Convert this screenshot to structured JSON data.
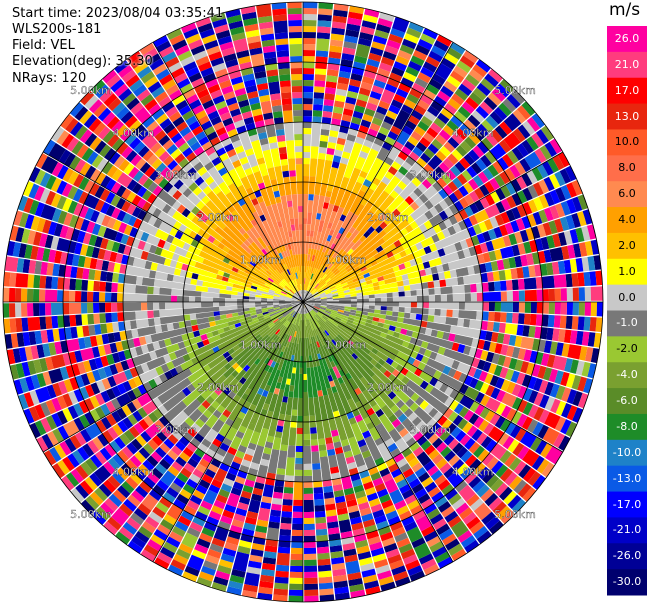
{
  "header": {
    "start_time": "Start time: 2023/08/04 03:35:41",
    "instrument": "WLS200s-181",
    "field": "Field: VEL",
    "elevation": "Elevation(deg): 35.30",
    "nrays": "NRays: 120"
  },
  "chart_data": {
    "type": "heatmap",
    "projection": "polar-ppi",
    "field": "VEL",
    "units": "m/s",
    "elevation_deg": 35.3,
    "n_rays": 120,
    "range_rings_km": [
      1.0,
      2.0,
      3.0,
      4.0,
      5.0
    ],
    "range_ring_labels": [
      "1.00km",
      "2.00km",
      "3.00km",
      "4.00km",
      "5.00km"
    ],
    "colorbar": {
      "unit_label": "m/s",
      "ticks": [
        "26.0",
        "21.0",
        "17.0",
        "13.0",
        "10.0",
        "8.0",
        "6.0",
        "4.0",
        "2.0",
        "1.0",
        "0.0",
        "-1.0",
        "-2.0",
        "-4.0",
        "-6.0",
        "-8.0",
        "-10.0",
        "-13.0",
        "-17.0",
        "-21.0",
        "-26.0",
        "-30.0"
      ],
      "bins": [
        {
          "min": 26,
          "max": 30,
          "color": "#ff00a0"
        },
        {
          "min": 21,
          "max": 26,
          "color": "#ff3c7e"
        },
        {
          "min": 17,
          "max": 21,
          "color": "#ff0000"
        },
        {
          "min": 13,
          "max": 17,
          "color": "#e8260e"
        },
        {
          "min": 10,
          "max": 13,
          "color": "#ff5a28"
        },
        {
          "min": 8,
          "max": 10,
          "color": "#ff6e4a"
        },
        {
          "min": 6,
          "max": 8,
          "color": "#ff8a50"
        },
        {
          "min": 4,
          "max": 6,
          "color": "#ffa000"
        },
        {
          "min": 2,
          "max": 4,
          "color": "#ffc000"
        },
        {
          "min": 1,
          "max": 2,
          "color": "#ffff00"
        },
        {
          "min": 0,
          "max": 1,
          "color": "#c8c8c8"
        },
        {
          "min": -1,
          "max": 0,
          "color": "#787878"
        },
        {
          "min": -2,
          "max": -1,
          "color": "#9ac832"
        },
        {
          "min": -4,
          "max": -2,
          "color": "#7aa030"
        },
        {
          "min": -6,
          "max": -4,
          "color": "#5a8c28"
        },
        {
          "min": -8,
          "max": -6,
          "color": "#1e8c28"
        },
        {
          "min": -10,
          "max": -8,
          "color": "#1e82c8"
        },
        {
          "min": -13,
          "max": -10,
          "color": "#0a5ae6"
        },
        {
          "min": -17,
          "max": -13,
          "color": "#0000ff"
        },
        {
          "min": -21,
          "max": -17,
          "color": "#0000c8"
        },
        {
          "min": -26,
          "max": -21,
          "color": "#000096"
        },
        {
          "min": -30,
          "max": -26,
          "color": "#00006e"
        }
      ]
    },
    "pattern": {
      "north_sector": "positive 1 to 10 m/s, peaking about 8 m/s near 1.5 km",
      "south_sector": "negative -1 to -8 m/s, strongest about -6 m/s near 1.5 km",
      "beyond_km": 3.0,
      "beyond_pattern": "noisy full-range values"
    }
  }
}
